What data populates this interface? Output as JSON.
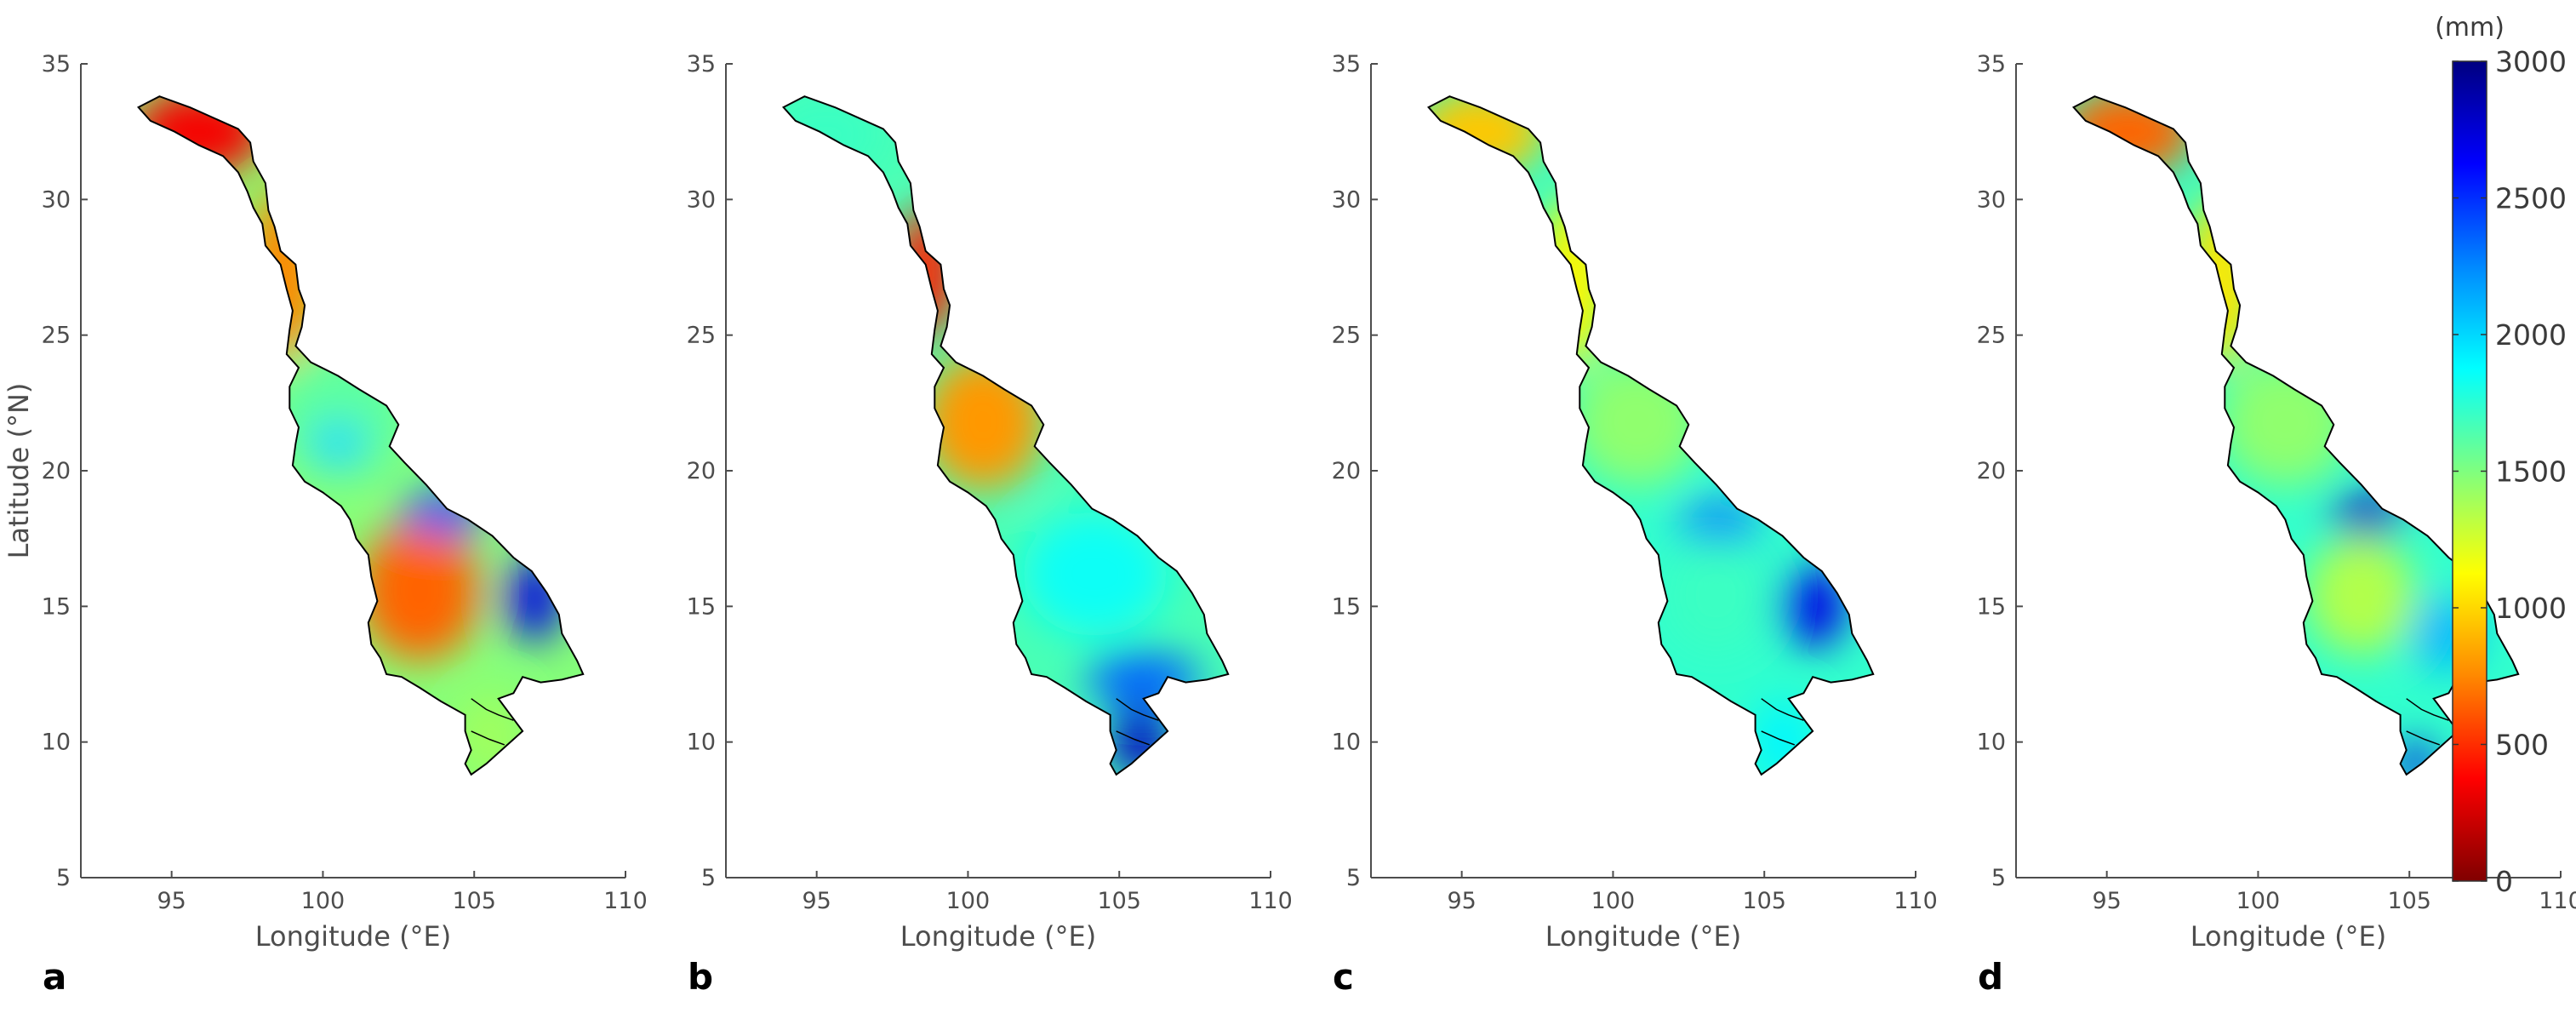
{
  "chart_data": [
    {
      "type": "heatmap",
      "panel": "a",
      "xlabel": "Longitude (°E)",
      "ylabel": "Latitude (°N)",
      "xlim": [
        92,
        110
      ],
      "ylim": [
        5,
        35
      ],
      "xticks": [
        "95",
        "100",
        "105",
        "110"
      ],
      "yticks": [
        "5",
        "10",
        "15",
        "20",
        "25",
        "30",
        "35"
      ],
      "regions": [
        {
          "region": "upper basin (30-34°N)",
          "value_mm": 350
        },
        {
          "region": "upper-middle (24-30°N)",
          "value_mm": 750
        },
        {
          "region": "north-central (20-24°N)",
          "value_mm": 1600
        },
        {
          "region": "high patch (~21°N, 100.5°E)",
          "value_mm": 2000
        },
        {
          "region": "Khorat plateau (14-17°N)",
          "value_mm": 650
        },
        {
          "region": "northeast high (~18.5°N, 104°E)",
          "value_mm": 2400
        },
        {
          "region": "east edge (~15°N, 107°E)",
          "value_mm": 2700
        },
        {
          "region": "delta (9-11°N)",
          "value_mm": 1400
        }
      ]
    },
    {
      "type": "heatmap",
      "panel": "b",
      "xlabel": "Longitude (°E)",
      "ylabel": "",
      "xlim": [
        92,
        110
      ],
      "ylim": [
        5,
        35
      ],
      "xticks": [
        "95",
        "100",
        "105",
        "110"
      ],
      "yticks": [
        "5",
        "10",
        "15",
        "20",
        "25",
        "30",
        "35"
      ],
      "regions": [
        {
          "region": "upper basin (30-34°N)",
          "value_mm": 1700
        },
        {
          "region": "upper-middle (26-29°N)",
          "value_mm": 450
        },
        {
          "region": "north-central (20-24°N)",
          "value_mm": 800
        },
        {
          "region": "Khorat plateau (14-18°N)",
          "value_mm": 1850
        },
        {
          "region": "south (11-13°N)",
          "value_mm": 2350
        },
        {
          "region": "delta (9-11°N)",
          "value_mm": 2800
        }
      ]
    },
    {
      "type": "heatmap",
      "panel": "c",
      "xlabel": "Longitude (°E)",
      "ylabel": "",
      "xlim": [
        92,
        110
      ],
      "ylim": [
        5,
        35
      ],
      "xticks": [
        "95",
        "100",
        "105",
        "110"
      ],
      "yticks": [
        "5",
        "10",
        "15",
        "20",
        "25",
        "30",
        "35"
      ],
      "regions": [
        {
          "region": "upper basin (30-34°N)",
          "value_mm": 950
        },
        {
          "region": "upper-middle (24-30°N)",
          "value_mm": 1100
        },
        {
          "region": "north-central (20-24°N)",
          "value_mm": 1450
        },
        {
          "region": "northeast high (~18°N, 103.5°E)",
          "value_mm": 2300
        },
        {
          "region": "east edge (~15°N, 106.5°E)",
          "value_mm": 2700
        },
        {
          "region": "Khorat plateau (14-17°N)",
          "value_mm": 1700
        },
        {
          "region": "delta (9-11°N)",
          "value_mm": 1900
        }
      ]
    },
    {
      "type": "heatmap",
      "panel": "d",
      "xlabel": "Longitude (°E)",
      "ylabel": "",
      "xlim": [
        92,
        110
      ],
      "ylim": [
        5,
        35
      ],
      "xticks": [
        "95",
        "100",
        "105",
        "110"
      ],
      "yticks": [
        "5",
        "10",
        "15",
        "20",
        "25",
        "30",
        "35"
      ],
      "regions": [
        {
          "region": "upper basin (30-34°N)",
          "value_mm": 650
        },
        {
          "region": "upper-middle (24-30°N)",
          "value_mm": 1050
        },
        {
          "region": "north-central (20-24°N)",
          "value_mm": 1450
        },
        {
          "region": "northeast high (~18.5°N, 103.5°E)",
          "value_mm": 2800
        },
        {
          "region": "Khorat plateau (14-17°N)",
          "value_mm": 1350
        },
        {
          "region": "east (~14°N, 106°E)",
          "value_mm": 2100
        },
        {
          "region": "delta (9-10°N)",
          "value_mm": 2700
        }
      ]
    }
  ],
  "colorbar": {
    "unit": "(mm)",
    "min": 0,
    "max": 3000,
    "ticks": [
      "0",
      "500",
      "1000",
      "1500",
      "2000",
      "2500",
      "3000"
    ],
    "colormap": [
      "#800000",
      "#ff0000",
      "#ff8800",
      "#ffff00",
      "#7fff7f",
      "#00ffff",
      "#0088ff",
      "#0000ff",
      "#000080"
    ]
  },
  "panel_labels": [
    "a",
    "b",
    "c",
    "d"
  ],
  "colors": {
    "axis": "#4d4d4d",
    "basin_outline": "#000000"
  }
}
